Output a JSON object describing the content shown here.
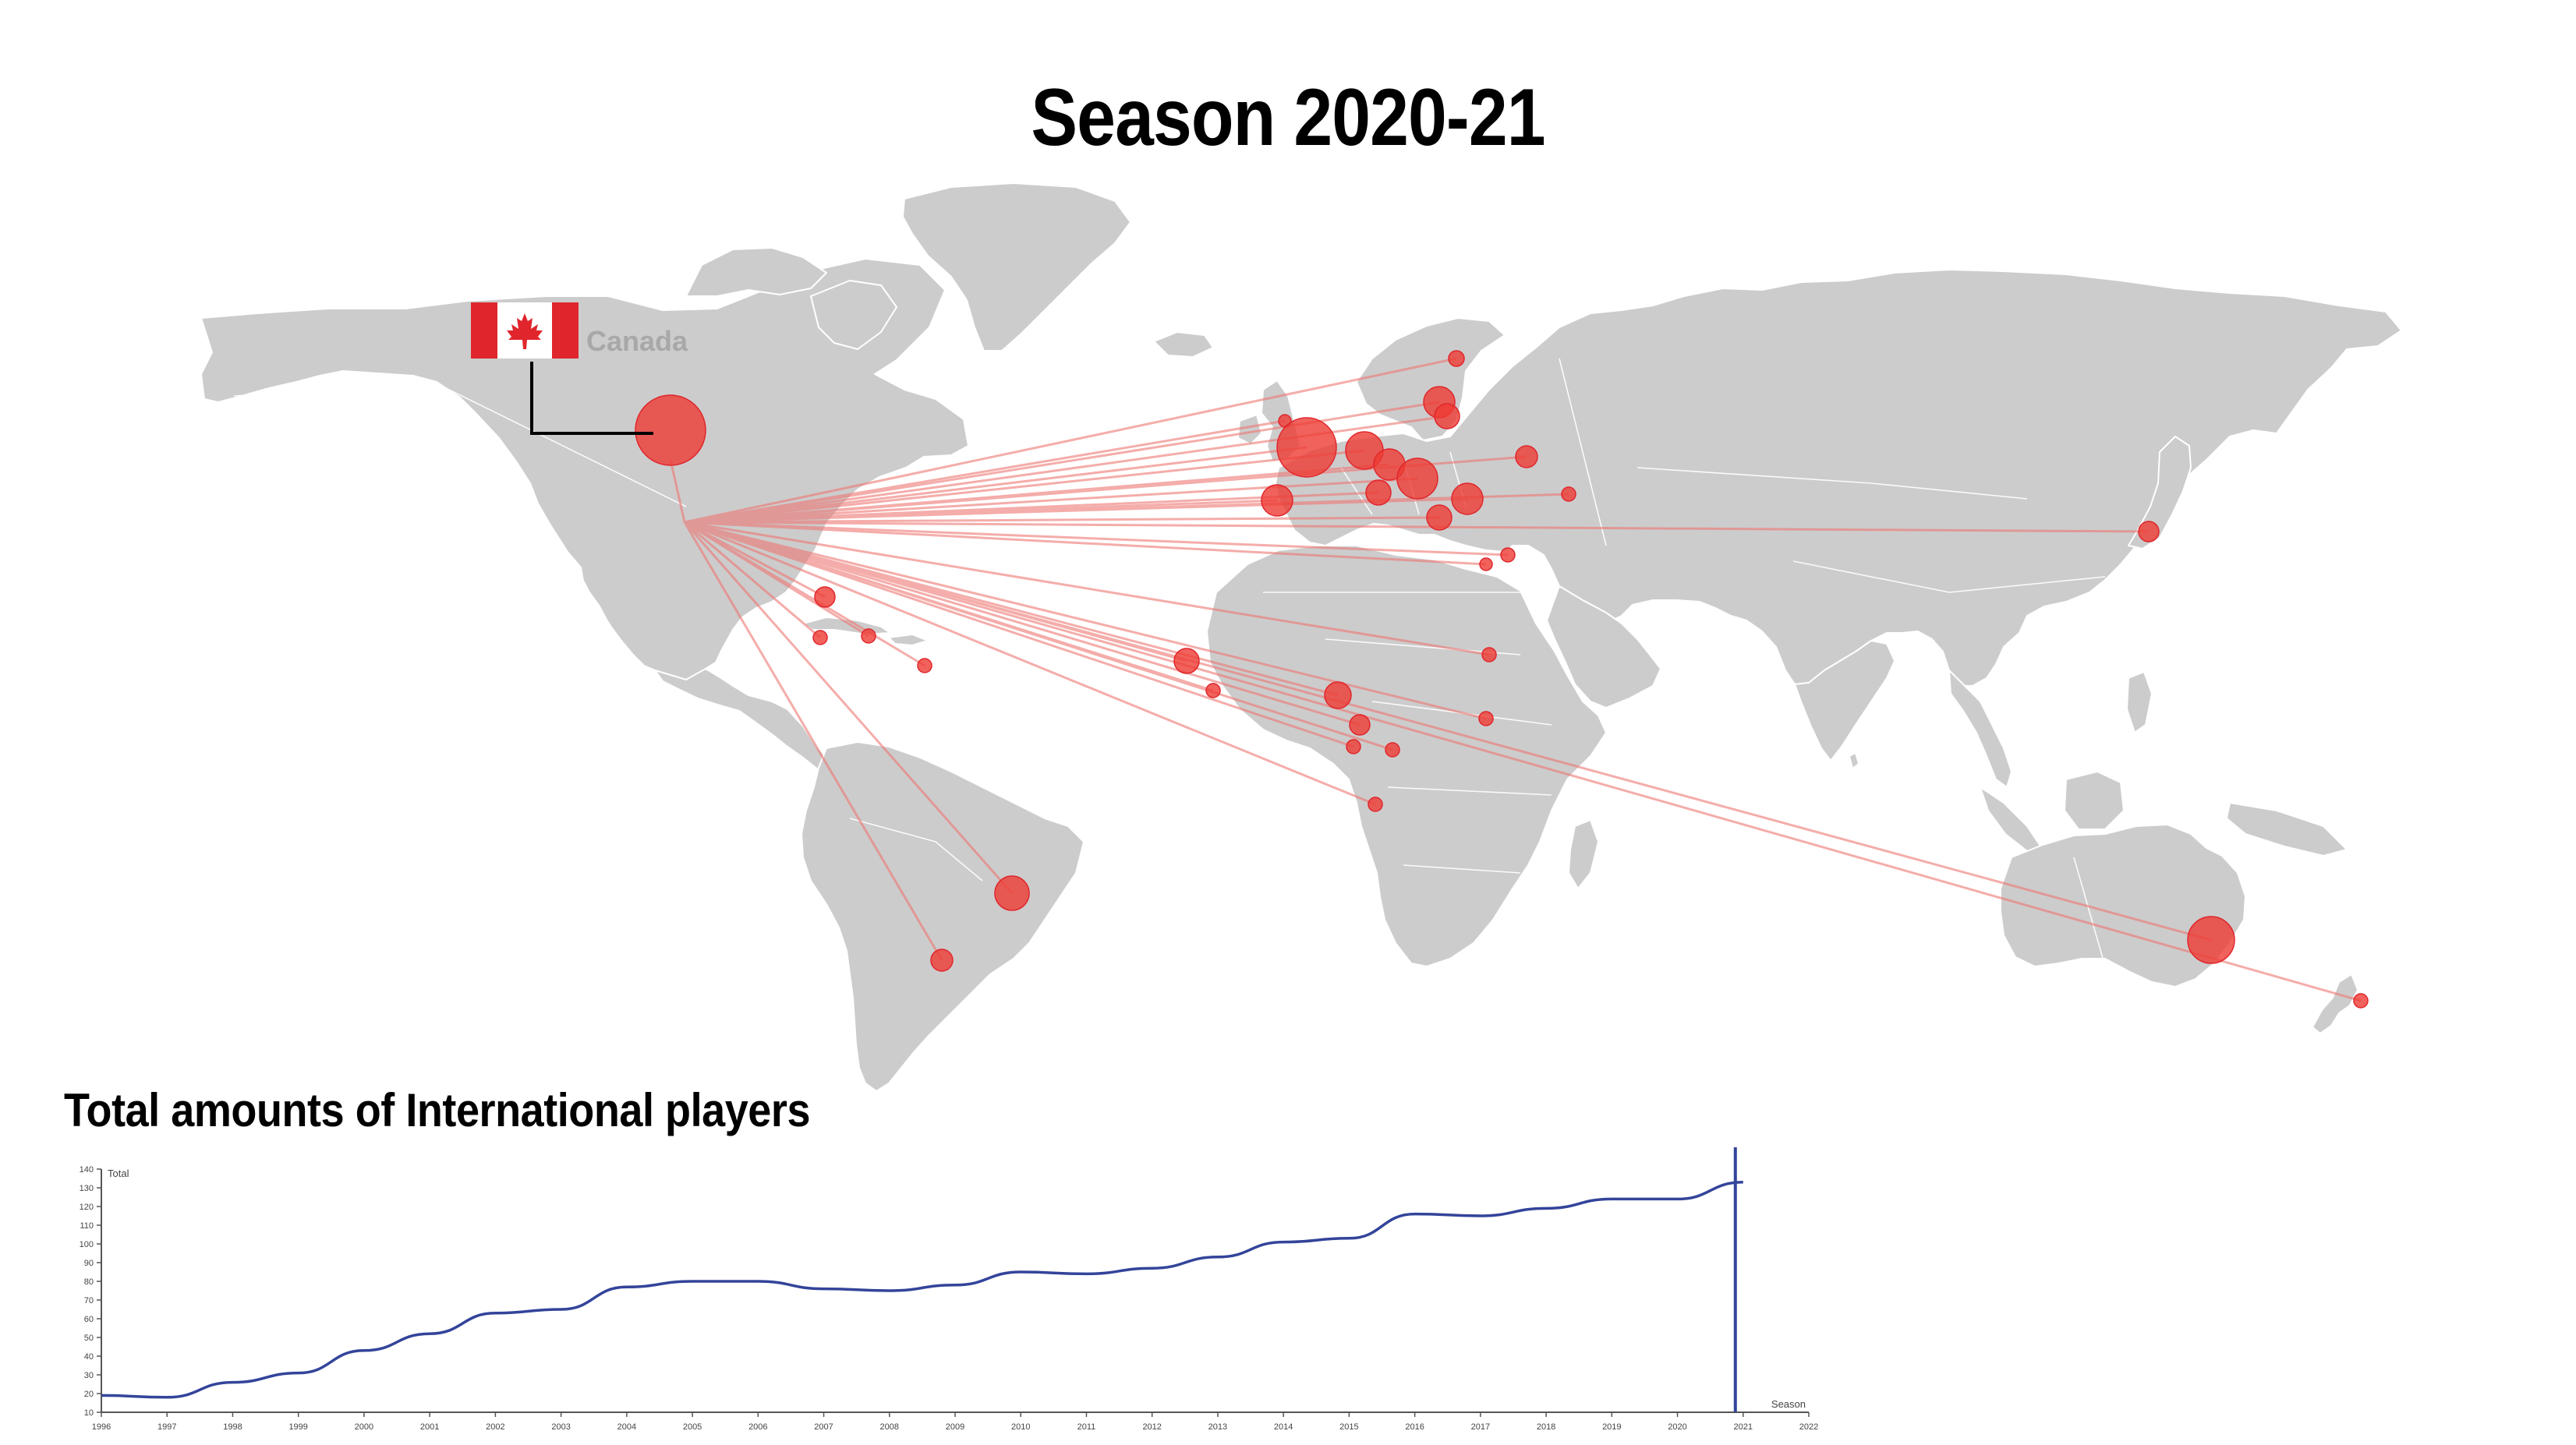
{
  "page": {
    "title": "Season 2020-21",
    "subtitle": "Total amounts of International players"
  },
  "map": {
    "origin_country": "Canada",
    "origin_flag": "canada-flag",
    "colors": {
      "land": "#cccccc",
      "border": "#ffffff",
      "bubble": "#ee3b33",
      "link": "#ee7773",
      "flag_red": "#e0262c"
    }
  },
  "chart_data": {
    "type": "line",
    "title": "Total amounts of International players",
    "xlabel": "Season",
    "ylabel": "Total",
    "xlim": [
      1996,
      2022
    ],
    "ylim": [
      10,
      140
    ],
    "yticks": [
      10,
      20,
      30,
      40,
      50,
      60,
      70,
      80,
      90,
      100,
      110,
      120,
      130,
      140
    ],
    "xticks": [
      1996,
      1997,
      1998,
      1999,
      2000,
      2001,
      2002,
      2003,
      2004,
      2005,
      2006,
      2007,
      2008,
      2009,
      2010,
      2011,
      2012,
      2013,
      2014,
      2015,
      2016,
      2017,
      2018,
      2019,
      2020,
      2021,
      2022
    ],
    "series": [
      {
        "color": "#33449a",
        "x": [
          1996,
          1997,
          1998,
          1999,
          2000,
          2001,
          2002,
          2003,
          2004,
          2005,
          2006,
          2007,
          2008,
          2009,
          2010,
          2011,
          2012,
          2013,
          2014,
          2015,
          2016,
          2017,
          2018,
          2019,
          2020,
          2021
        ],
        "y": [
          19,
          18,
          26,
          31,
          43,
          52,
          63,
          65,
          77,
          80,
          80,
          76,
          75,
          78,
          85,
          84,
          87,
          93,
          101,
          103,
          116,
          115,
          119,
          124,
          124,
          133
        ]
      }
    ],
    "current_season_marker": 2021
  }
}
